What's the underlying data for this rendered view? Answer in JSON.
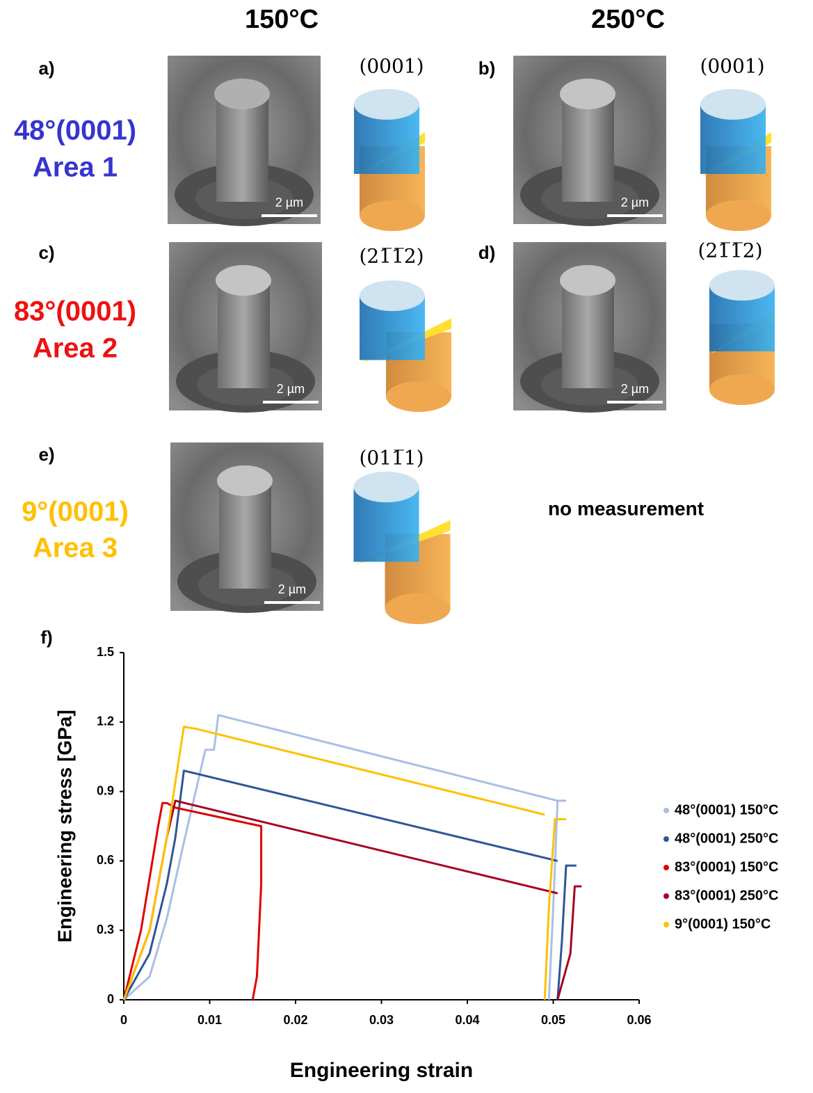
{
  "columns": [
    "150°C",
    "250°C"
  ],
  "rows": [
    {
      "label": "48°(0001)",
      "area": "Area 1",
      "color": "#3535d0"
    },
    {
      "label": "83°(0001)",
      "area": "Area 2",
      "color": "#ee1111"
    },
    {
      "label": "9°(0001)",
      "area": "Area 3",
      "color": "#ffc000"
    }
  ],
  "panels": [
    {
      "letter": "a)",
      "plane": "(0001)",
      "scale_bar": "2 µm"
    },
    {
      "letter": "b)",
      "plane": "(0001)",
      "scale_bar": "2 µm"
    },
    {
      "letter": "c)",
      "plane": "(21̅1̅2)",
      "scale_bar": "2 µm"
    },
    {
      "letter": "d)",
      "plane": "(21̅1̅2)",
      "scale_bar": "2 µm"
    },
    {
      "letter": "e)",
      "plane": "(011̅1)",
      "scale_bar": "2 µm"
    }
  ],
  "no_measurement": "no measurement",
  "chart_data": {
    "type": "line",
    "panel_letter": "f)",
    "x_label": "Engineering strain",
    "y_label": "Engineering stress [GPa]",
    "xlim": [
      0,
      0.06
    ],
    "ylim": [
      0,
      1.5
    ],
    "xticks": [
      0,
      0.01,
      0.02,
      0.03,
      0.04,
      0.05,
      0.06
    ],
    "yticks": [
      0,
      0.3,
      0.6,
      0.9,
      1.2,
      1.5
    ],
    "legend": "right",
    "series": [
      {
        "name": "48°(0001) 150°C",
        "color": "#a9bfe3",
        "x": [
          0,
          0.003,
          0.005,
          0.007,
          0.009,
          0.0095,
          0.0105,
          0.011,
          0.0505,
          null,
          0.0495,
          0.05,
          0.0505,
          0.0515
        ],
        "values": [
          0,
          0.1,
          0.35,
          0.68,
          1.0,
          1.08,
          1.08,
          1.23,
          0.86,
          null,
          0,
          0.4,
          0.86,
          0.86
        ]
      },
      {
        "name": "48°(0001) 250°C",
        "color": "#2f5597",
        "x": [
          0,
          0.003,
          0.005,
          0.006,
          0.007,
          0.0505,
          null,
          0.0505,
          0.051,
          0.0515,
          0.0527
        ],
        "values": [
          0,
          0.2,
          0.5,
          0.7,
          0.99,
          0.6,
          null,
          0,
          0.25,
          0.58,
          0.58
        ]
      },
      {
        "name": "83°(0001) 150°C",
        "color": "#e00000",
        "x": [
          0,
          0.002,
          0.004,
          0.0045,
          0.005,
          0.006,
          0.016,
          0.016,
          0.0155,
          0.015
        ],
        "values": [
          0,
          0.3,
          0.75,
          0.85,
          0.85,
          0.83,
          0.75,
          0.5,
          0.1,
          0
        ]
      },
      {
        "name": "83°(0001) 250°C",
        "color": "#a50021",
        "x": [
          0,
          0.003,
          0.005,
          0.006,
          0.0505,
          null,
          0.0505,
          0.052,
          0.0525,
          0.0533
        ],
        "values": [
          0,
          0.3,
          0.7,
          0.86,
          0.46,
          null,
          0,
          0.2,
          0.49,
          0.49
        ]
      },
      {
        "name": "9°(0001) 150°C",
        "color": "#ffc000",
        "x": [
          0,
          0.003,
          0.005,
          0.007,
          0.0085,
          0.049,
          null,
          0.049,
          0.0495,
          0.0502,
          0.0515
        ],
        "values": [
          0,
          0.3,
          0.7,
          1.18,
          1.17,
          0.8,
          null,
          0,
          0.4,
          0.78,
          0.78
        ]
      }
    ]
  }
}
